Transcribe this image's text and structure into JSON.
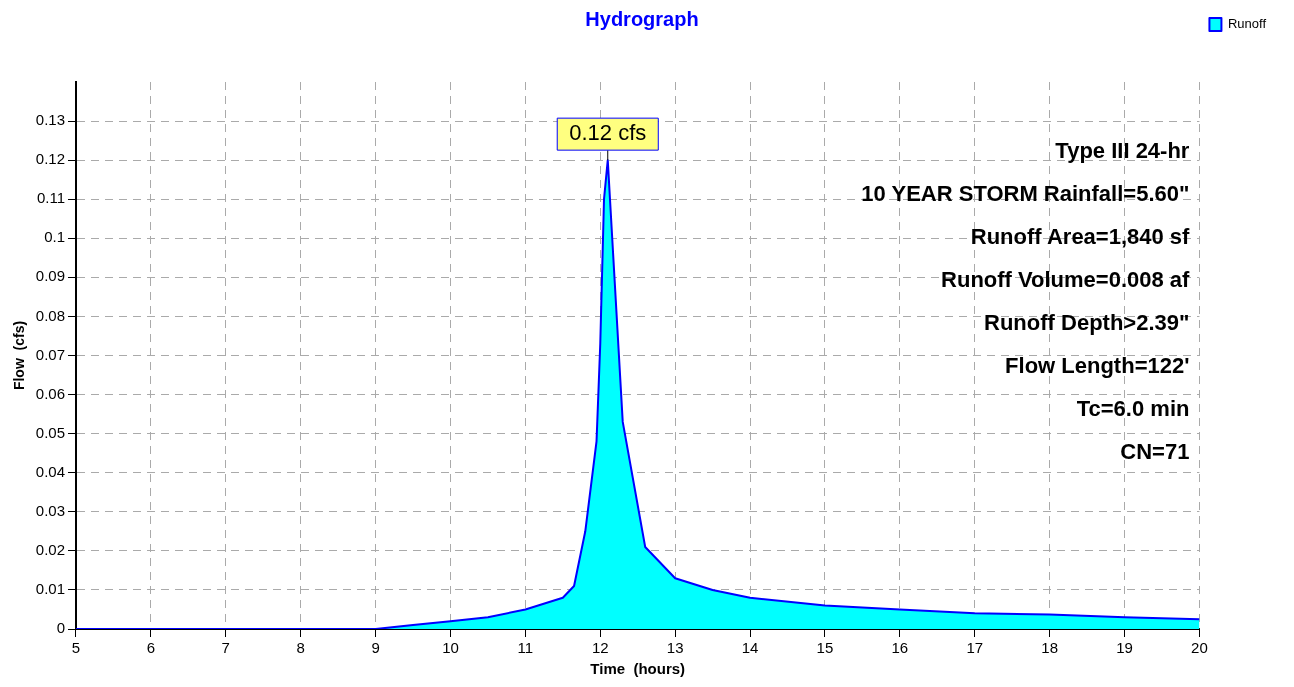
{
  "chart_data": {
    "type": "area",
    "title": "Hydrograph",
    "xlabel": "Time  (hours)",
    "ylabel": "Flow  (cfs)",
    "x": [
      5,
      9,
      9.5,
      10,
      10.5,
      11,
      11.5,
      11.65,
      11.8,
      11.95,
      12,
      12.05,
      12.1,
      12.3,
      12.6,
      13,
      13.5,
      14,
      15,
      16,
      17,
      18,
      19,
      20
    ],
    "series": [
      {
        "name": "Runoff",
        "color": "#00ffff",
        "values": [
          0,
          0,
          0.001,
          0.002,
          0.003,
          0.005,
          0.008,
          0.011,
          0.025,
          0.048,
          0.073,
          0.11,
          0.12,
          0.053,
          0.021,
          0.013,
          0.01,
          0.008,
          0.006,
          0.005,
          0.004,
          0.0037,
          0.003,
          0.0025
        ]
      }
    ],
    "xlim": [
      5,
      20
    ],
    "xticks": [
      5,
      6,
      7,
      8,
      9,
      10,
      11,
      12,
      13,
      14,
      15,
      16,
      17,
      18,
      19,
      20
    ],
    "ylim": [
      0,
      0.14
    ],
    "yticks": [
      0,
      0.01,
      0.02,
      0.03,
      0.04,
      0.05,
      0.06,
      0.07,
      0.08,
      0.09,
      0.1,
      0.11,
      0.12,
      0.13
    ],
    "grid": true,
    "legend": "top right",
    "marker": "none",
    "annotations": [
      {
        "text": "0.12 cfs",
        "x": 12.1,
        "y": 0.12
      },
      "Type III 24-hr",
      "10 YEAR STORM Rainfall=5.60\"",
      "Runoff Area=1,840 sf",
      "Runoff Volume=0.008 af",
      "Runoff Depth>2.39\"",
      "Flow Length=122'",
      "Tc=6.0 min",
      "CN=71"
    ]
  }
}
